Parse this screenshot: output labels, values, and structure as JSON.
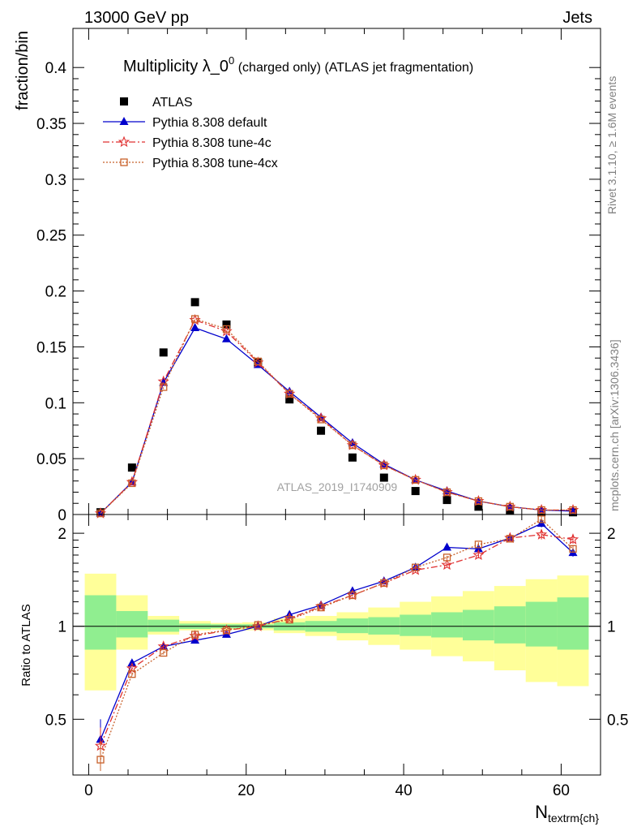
{
  "header": {
    "left": "13000 GeV pp",
    "right": "Jets"
  },
  "side_labels": {
    "rivet": "Rivet 3.1.10, ≥ 1.6M events",
    "mcplots": "mcplots.cern.ch [arXiv:1306.3436]"
  },
  "watermark": "ATLAS_2019_I1740909",
  "chart_data": [
    {
      "panel": "main",
      "type": "scatter",
      "title": "Multiplicity λ_0",
      "title_sup": "0",
      "title_rest": " (charged only) (ATLAS jet fragmentation)",
      "ylabel": "fraction/bin",
      "xlim": [
        -2,
        65
      ],
      "ylim": [
        0,
        0.435
      ],
      "yticks": [
        0,
        0.05,
        0.1,
        0.15,
        0.2,
        0.25,
        0.3,
        0.35,
        0.4
      ],
      "ytick_labels": [
        "0",
        "0.05",
        "0.1",
        "0.15",
        "0.2",
        "0.25",
        "0.3",
        "0.35",
        "0.4"
      ],
      "legend_position": "top-left",
      "x": [
        1.5,
        5.5,
        9.5,
        13.5,
        17.5,
        21.5,
        25.5,
        29.5,
        33.5,
        37.5,
        41.5,
        45.5,
        49.5,
        53.5,
        57.5,
        61.5
      ],
      "series": [
        {
          "name": "ATLAS",
          "color": "#000000",
          "marker": "square",
          "values": [
            0.002,
            0.042,
            0.145,
            0.19,
            0.17,
            0.136,
            0.103,
            0.075,
            0.051,
            0.033,
            0.021,
            0.013,
            0.007,
            0.004,
            0.002,
            0.002
          ]
        },
        {
          "name": "Pythia 8.308 default",
          "color": "#0000cc",
          "marker": "triangle",
          "dash": "",
          "values": [
            0.001,
            0.029,
            0.118,
            0.167,
            0.157,
            0.134,
            0.11,
            0.087,
            0.064,
            0.045,
            0.031,
            0.021,
            0.012,
            0.007,
            0.004,
            0.003
          ]
        },
        {
          "name": "Pythia 8.308 tune-4c",
          "color": "#e03030",
          "marker": "star",
          "dash": "8,3,2,3",
          "values": [
            0.001,
            0.029,
            0.119,
            0.174,
            0.164,
            0.136,
            0.108,
            0.086,
            0.062,
            0.044,
            0.031,
            0.02,
            0.012,
            0.007,
            0.004,
            0.004
          ]
        },
        {
          "name": "Pythia 8.308 tune-4cx",
          "color": "#c8602a",
          "marker": "opensquare",
          "dash": "2,2",
          "values": [
            0.001,
            0.028,
            0.114,
            0.175,
            0.166,
            0.137,
            0.108,
            0.085,
            0.062,
            0.044,
            0.031,
            0.02,
            0.012,
            0.007,
            0.004,
            0.004
          ]
        }
      ]
    },
    {
      "panel": "ratio",
      "type": "line",
      "ylabel": "Ratio to ATLAS",
      "xlabel": "N",
      "xlabel_sub": "textrm{ch}",
      "xlim": [
        -2,
        65
      ],
      "ylim": [
        0.33,
        2.3
      ],
      "yticks": [
        0.5,
        1,
        2
      ],
      "ytick_labels": [
        "0.5",
        "1",
        "2"
      ],
      "xticks": [
        0,
        20,
        40,
        60
      ],
      "xtick_labels": [
        "0",
        "20",
        "40",
        "60"
      ],
      "bins": [
        [
          -0.5,
          3.5
        ],
        [
          3.5,
          7.5
        ],
        [
          7.5,
          11.5
        ],
        [
          11.5,
          15.5
        ],
        [
          15.5,
          19.5
        ],
        [
          19.5,
          23.5
        ],
        [
          23.5,
          27.5
        ],
        [
          27.5,
          31.5
        ],
        [
          31.5,
          35.5
        ],
        [
          35.5,
          39.5
        ],
        [
          39.5,
          43.5
        ],
        [
          43.5,
          47.5
        ],
        [
          47.5,
          51.5
        ],
        [
          51.5,
          55.5
        ],
        [
          55.5,
          59.5
        ],
        [
          59.5,
          63.5
        ]
      ],
      "band_inner": [
        [
          0.84,
          1.26
        ],
        [
          0.92,
          1.12
        ],
        [
          0.96,
          1.05
        ],
        [
          0.98,
          1.02
        ],
        [
          0.985,
          1.015
        ],
        [
          0.985,
          1.015
        ],
        [
          0.97,
          1.03
        ],
        [
          0.96,
          1.04
        ],
        [
          0.95,
          1.06
        ],
        [
          0.94,
          1.07
        ],
        [
          0.93,
          1.09
        ],
        [
          0.92,
          1.11
        ],
        [
          0.9,
          1.13
        ],
        [
          0.88,
          1.16
        ],
        [
          0.86,
          1.2
        ],
        [
          0.84,
          1.24
        ]
      ],
      "band_outer": [
        [
          0.62,
          1.48
        ],
        [
          0.84,
          1.26
        ],
        [
          0.94,
          1.08
        ],
        [
          0.97,
          1.04
        ],
        [
          0.975,
          1.025
        ],
        [
          0.97,
          1.03
        ],
        [
          0.95,
          1.06
        ],
        [
          0.93,
          1.08
        ],
        [
          0.9,
          1.11
        ],
        [
          0.87,
          1.15
        ],
        [
          0.84,
          1.2
        ],
        [
          0.8,
          1.25
        ],
        [
          0.77,
          1.3
        ],
        [
          0.72,
          1.35
        ],
        [
          0.66,
          1.42
        ],
        [
          0.64,
          1.46
        ]
      ],
      "band_colors": {
        "inner": "#90ee90",
        "outer": "#ffff99"
      },
      "x": [
        1.5,
        5.5,
        9.5,
        13.5,
        17.5,
        21.5,
        25.5,
        29.5,
        33.5,
        37.5,
        41.5,
        45.5,
        49.5,
        53.5,
        57.5,
        61.5
      ],
      "series": [
        {
          "name": "Pythia 8.308 default",
          "color": "#0000cc",
          "marker": "triangle",
          "dash": "",
          "values": [
            0.43,
            0.76,
            0.86,
            0.9,
            0.94,
            1.0,
            1.09,
            1.17,
            1.3,
            1.4,
            1.55,
            1.8,
            1.78,
            1.93,
            2.15,
            1.73
          ],
          "errors": [
            0.07,
            0.01,
            0.01,
            0.01,
            0.01,
            0.01,
            0.01,
            0.01,
            0.01,
            0.01,
            0.02,
            0.02,
            0.03,
            0.04,
            0.06,
            0.05
          ]
        },
        {
          "name": "Pythia 8.308 tune-4c",
          "color": "#e03030",
          "marker": "star",
          "dash": "8,3,2,3",
          "values": [
            0.41,
            0.73,
            0.86,
            0.93,
            0.97,
            1.0,
            1.06,
            1.16,
            1.26,
            1.38,
            1.52,
            1.58,
            1.7,
            1.93,
            1.98,
            1.91
          ],
          "errors": [
            0.06,
            0.01,
            0.01,
            0.01,
            0.01,
            0.01,
            0.01,
            0.01,
            0.01,
            0.01,
            0.02,
            0.02,
            0.04,
            0.04,
            0.07,
            0.06
          ]
        },
        {
          "name": "Pythia 8.308 tune-4cx",
          "color": "#c8602a",
          "marker": "opensquare",
          "dash": "2,2",
          "values": [
            0.37,
            0.7,
            0.82,
            0.94,
            0.97,
            1.01,
            1.05,
            1.15,
            1.26,
            1.38,
            1.55,
            1.67,
            1.84,
            1.92,
            2.22,
            1.78
          ],
          "errors": [
            0.05,
            0.01,
            0.01,
            0.01,
            0.01,
            0.01,
            0.01,
            0.01,
            0.01,
            0.01,
            0.02,
            0.02,
            0.03,
            0.04,
            0.06,
            0.05
          ]
        }
      ]
    }
  ]
}
